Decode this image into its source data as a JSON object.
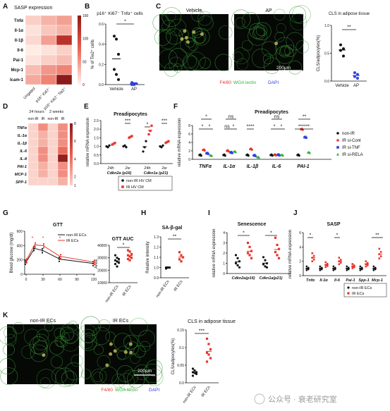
{
  "panels": [
    "A",
    "B",
    "C",
    "D",
    "E",
    "F",
    "G",
    "H",
    "I",
    "J",
    "K"
  ],
  "watermark": "公众号 · 衰老研究室",
  "colors": {
    "red": "#e8342a",
    "blue": "#2f3fe0",
    "green": "#2db52d",
    "black": "#111111",
    "heat_low": "#fff5ef",
    "heat_high": "#8b1a1a"
  },
  "chart_data": [
    {
      "id": "A",
      "type": "heatmap",
      "title": "SASP expression",
      "rows": [
        "Tnfα",
        "Il-1α",
        "Il-1β",
        "Il-6",
        "Pai-1",
        "Mcp-1",
        "Icam-1"
      ],
      "columns": [
        "Ungated",
        "p16⁺ Ki67⁻",
        "p16⁺ Ki67⁻ Tie2⁺"
      ],
      "values": [
        [
          20,
          35,
          45
        ],
        [
          10,
          25,
          35
        ],
        [
          15,
          45,
          120
        ],
        [
          5,
          10,
          20
        ],
        [
          10,
          20,
          30
        ],
        [
          30,
          50,
          60
        ],
        [
          40,
          60,
          150
        ]
      ],
      "colorbar_ticks": [
        0,
        50,
        100,
        150
      ]
    },
    {
      "id": "B",
      "type": "scatter",
      "title": "p16⁺ Ki67⁻ Tnfα⁺ cells",
      "ylabel": "% of Tie2⁺ cells",
      "categories": [
        "Vehicle",
        "AP"
      ],
      "ylim": [
        0,
        0.6
      ],
      "yticks": [
        0.0,
        0.2,
        0.4,
        0.6
      ],
      "significance": "*",
      "series": [
        {
          "name": "Vehicle",
          "color": "#111111",
          "values": [
            0.48,
            0.45,
            0.3,
            0.15,
            0.1,
            0.05
          ]
        },
        {
          "name": "AP",
          "color": "#2f3fe0",
          "values": [
            0.02,
            0.01,
            0.01,
            0.0,
            0.0
          ]
        }
      ]
    },
    {
      "id": "C",
      "type": "scatter",
      "title": "CLS in adipose tissue",
      "ylabel": "CLS/adipocytes(%)",
      "categories": [
        "Vehicle",
        "AP"
      ],
      "ylim": [
        0,
        1.0
      ],
      "yticks": [
        0.0,
        0.5,
        1.0
      ],
      "significance": "**",
      "series": [
        {
          "name": "Vehicle",
          "color": "#111111",
          "values": [
            0.65,
            0.58,
            0.55,
            0.45
          ]
        },
        {
          "name": "AP",
          "color": "#2f3fe0",
          "values": [
            0.15,
            0.12,
            0.08,
            0.05
          ]
        }
      ]
    },
    {
      "id": "D",
      "type": "heatmap",
      "rows": [
        "TNFα",
        "IL-1α",
        "IL-1β",
        "IL-6",
        "IL-8",
        "PAI-1",
        "MCP-1",
        "SPP-1"
      ],
      "groups": [
        "24 hours",
        "2 weeks"
      ],
      "columns": [
        "non-IR",
        "IR",
        "non-IR",
        "IR"
      ],
      "values": [
        [
          1,
          3,
          1,
          3
        ],
        [
          1,
          2,
          1,
          3
        ],
        [
          1,
          2,
          1,
          3
        ],
        [
          1,
          3,
          1,
          4
        ],
        [
          1,
          3,
          1,
          8
        ],
        [
          1,
          2,
          1,
          3
        ],
        [
          1,
          2,
          1,
          3
        ],
        [
          1,
          1,
          1,
          2
        ]
      ],
      "colorbar_ticks": [
        1,
        2,
        4,
        6,
        8
      ]
    },
    {
      "id": "E",
      "type": "scatter",
      "title": "Preadipocytes",
      "ylabel": "relative mRNA expression",
      "groups": [
        "Cdkn2a (p16)",
        "Cdkn1a (p21)"
      ],
      "categories": [
        "24h",
        "2w",
        "24h",
        "2w"
      ],
      "ylim": [
        0,
        2.5
      ],
      "yticks": [
        0.0,
        0.5,
        1.0,
        1.5,
        2.0,
        2.5
      ],
      "significance": [
        "***",
        "*",
        "***"
      ],
      "legend": [
        "non-IR HV CM",
        "IR HV CM"
      ],
      "series": [
        {
          "name": "non-IR HV CM",
          "color": "#111111",
          "values": [
            [
              1.0,
              0.95,
              1.05
            ],
            [
              1.0,
              1.05,
              0.95
            ],
            [
              0.7,
              0.95,
              1.3
            ],
            [
              1.0,
              0.95,
              1.05
            ]
          ]
        },
        {
          "name": "IR HV CM",
          "color": "#e8342a",
          "values": [
            [
              1.1,
              1.15,
              1.2
            ],
            [
              1.5,
              1.55,
              1.6
            ],
            [
              1.7,
              1.9,
              2.2
            ],
            [
              1.2,
              1.25,
              1.3
            ]
          ]
        }
      ]
    },
    {
      "id": "F",
      "type": "scatter",
      "title": "Preadipocytes",
      "ylabel": "relative mRNA expression",
      "categories": [
        "TNFα",
        "IL-1α",
        "IL-1β",
        "IL-6",
        "PAI-1"
      ],
      "ylim": [
        0,
        8
      ],
      "yticks": [
        0,
        2,
        4,
        6,
        8
      ],
      "significance_labels": [
        "*",
        "*",
        "*",
        "ns",
        "ns",
        "*",
        "****",
        "*",
        "ns",
        "*",
        "**",
        "******"
      ],
      "legend": [
        "non-IR",
        "IR si-Cont",
        "IR si-TNF",
        "IR si-RELA"
      ],
      "series": [
        {
          "name": "non-IR",
          "color": "#111111",
          "values": [
            1.0,
            1.0,
            1.0,
            1.0,
            1.0
          ]
        },
        {
          "name": "IR si-Cont",
          "color": "#e8342a",
          "values": [
            2.2,
            2.0,
            2.4,
            1.05,
            7.1
          ]
        },
        {
          "name": "IR si-TNF",
          "color": "#2f3fe0",
          "values": [
            1.4,
            1.6,
            0.9,
            1.05,
            5.2
          ]
        },
        {
          "name": "IR si-RELA",
          "color": "#2db52d",
          "values": [
            0.9,
            1.8,
            0.5,
            1.0,
            1.6
          ]
        }
      ]
    },
    {
      "id": "G",
      "type": "line",
      "title": "GTT",
      "ylabel": "Blood glucose (mg/dl)",
      "x": [
        0,
        15,
        30,
        60,
        120
      ],
      "xticks": [
        0,
        30,
        60,
        90,
        120
      ],
      "ylim": [
        0,
        600
      ],
      "yticks": [
        0,
        200,
        400,
        600
      ],
      "series": [
        {
          "name": "non-IR ECs",
          "color": "#111111",
          "values": [
            170,
            360,
            330,
            210,
            150
          ]
        },
        {
          "name": "IR ECs",
          "color": "#e8342a",
          "values": [
            190,
            410,
            400,
            250,
            170
          ]
        }
      ]
    },
    {
      "id": "G2",
      "type": "scatter",
      "title": "GTT AUC",
      "ylabel": "Area",
      "categories": [
        "non-IR ECs",
        "IR ECs"
      ],
      "ylim": [
        10000,
        40000
      ],
      "yticks": [
        10000,
        20000,
        30000,
        40000
      ],
      "significance": "*",
      "series": [
        {
          "name": "non-IR ECs",
          "color": "#111111",
          "values": [
            32000,
            30000,
            29000,
            28000,
            27000,
            26000,
            25000,
            23000
          ]
        },
        {
          "name": "IR ECs",
          "color": "#e8342a",
          "values": [
            36000,
            35000,
            33000,
            32000,
            31000,
            30000,
            29000,
            28000
          ]
        }
      ]
    },
    {
      "id": "H",
      "type": "scatter",
      "title": "SA-β-gal",
      "ylabel": "Relative intensity",
      "categories": [
        "non-IR ECs",
        "IR ECs"
      ],
      "ylim": [
        0.9,
        1.3
      ],
      "yticks": [
        0.9,
        1.0,
        1.1,
        1.2,
        1.3
      ],
      "significance": "**",
      "series": [
        {
          "name": "non-IR ECs",
          "color": "#111111",
          "values": [
            1.0,
            1.0,
            1.0,
            0.99,
            1.0
          ]
        },
        {
          "name": "IR ECs",
          "color": "#e8342a",
          "values": [
            1.15,
            1.12,
            1.1,
            1.08,
            1.06
          ]
        }
      ]
    },
    {
      "id": "I",
      "type": "scatter",
      "title": "Senescence",
      "ylabel": "relative mRNA expression",
      "categories": [
        "Cdkn2a(p16)",
        "Cdkn1a(p21)"
      ],
      "ylim": [
        0,
        4
      ],
      "yticks": [
        0,
        1,
        2,
        3,
        4
      ],
      "significance": [
        "*",
        "*"
      ],
      "series": [
        {
          "name": "non-IR ECs",
          "color": "#111111",
          "values": [
            [
              1.8,
              1.5,
              1.2,
              1.0,
              0.8,
              0.6
            ],
            [
              1.6,
              1.3,
              1.0,
              0.9,
              0.7,
              0.6
            ]
          ]
        },
        {
          "name": "IR ECs",
          "color": "#e8342a",
          "values": [
            [
              3.0,
              2.6,
              2.2,
              2.0,
              1.8,
              1.5
            ],
            [
              3.5,
              2.8,
              2.4,
              2.1,
              1.8,
              1.5
            ]
          ]
        }
      ]
    },
    {
      "id": "J",
      "type": "scatter",
      "title": "SASP",
      "ylabel": "relative mRNA expression",
      "categories": [
        "Tnfα",
        "Il-1α",
        "Il-6",
        "Pai-1",
        "Spp-1",
        "Mcp-1"
      ],
      "ylim": [
        0,
        6
      ],
      "yticks": [
        0,
        2,
        4,
        6
      ],
      "significance": [
        "*",
        "*",
        "**"
      ],
      "legend": [
        "non-IR ECs",
        "IR ECs"
      ],
      "series": [
        {
          "name": "non-IR ECs",
          "color": "#111111",
          "values": [
            1.0,
            1.0,
            1.0,
            1.0,
            1.0,
            1.0
          ]
        },
        {
          "name": "IR ECs",
          "color": "#e8342a",
          "values": [
            2.5,
            1.5,
            2.0,
            1.3,
            1.6,
            3.0
          ]
        }
      ]
    },
    {
      "id": "K",
      "type": "scatter",
      "title": "CLS in adipose tissue",
      "ylabel": "CLS/adipocytes(%)",
      "categories": [
        "non-IR ECs",
        "IR ECs"
      ],
      "ylim": [
        0,
        0.15
      ],
      "yticks": [
        0.0,
        0.05,
        0.1,
        0.15
      ],
      "significance": "***",
      "series": [
        {
          "name": "non-IR ECs",
          "color": "#111111",
          "values": [
            0.04,
            0.035,
            0.03,
            0.03,
            0.028,
            0.025,
            0.02
          ]
        },
        {
          "name": "IR ECs",
          "color": "#e8342a",
          "values": [
            0.125,
            0.11,
            0.095,
            0.085,
            0.08,
            0.07,
            0.06
          ]
        }
      ]
    }
  ],
  "micrographs": {
    "C": {
      "labels": [
        "Vehicle",
        "AP"
      ],
      "scale_bar": "200μm",
      "stain": [
        "F4/80",
        "WGA lectin",
        "DAPI"
      ]
    },
    "K": {
      "labels": [
        "non-IR ECs",
        "IR ECs"
      ],
      "scale_bar": "200μm",
      "stain": [
        "F4/80",
        "WGA lectin",
        "DAPI"
      ]
    }
  }
}
